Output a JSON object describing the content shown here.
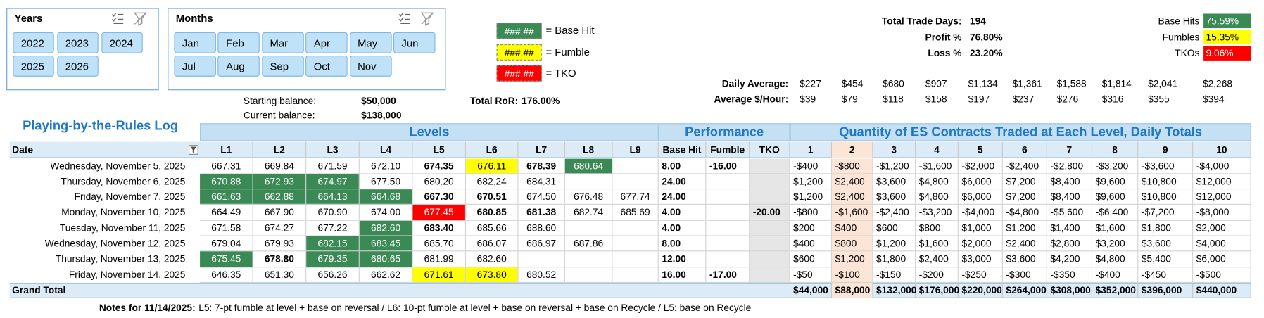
{
  "slicers": [
    {
      "title": "Years",
      "items": [
        "2022",
        "2023",
        "2024",
        "2025",
        "2026"
      ]
    },
    {
      "title": "Months",
      "items": [
        "Jan",
        "Feb",
        "Mar",
        "Apr",
        "May",
        "Jun",
        "Jul",
        "Aug",
        "Sep",
        "Oct",
        "Nov"
      ]
    }
  ],
  "legend": [
    {
      "swatch": "###.##",
      "label": "= Base Hit",
      "color": "#3b8a55",
      "text_color": "#ffffff"
    },
    {
      "swatch": "###.##",
      "label": "= Fumble",
      "color": "#ffff00",
      "text_color": "#000000"
    },
    {
      "swatch": "###.##",
      "label": "= TKO",
      "color": "#ff0000",
      "text_color": "#ffffff"
    }
  ],
  "balances": [
    {
      "label": "Starting balance:",
      "value": "$50,000"
    },
    {
      "label": "Current balance:",
      "value": "$138,000"
    }
  ],
  "ror": {
    "label": "Total RoR:",
    "value": "176.00%"
  },
  "stats": [
    {
      "label": "Total Trade Days:",
      "value": "194"
    },
    {
      "label": "Profit %",
      "value": "76.80%"
    },
    {
      "label": "Loss %",
      "value": "23.20%"
    }
  ],
  "rates": [
    {
      "label": "Base Hits",
      "value": "75.59%",
      "color": "#3b8a55",
      "text_color": "#ffffff"
    },
    {
      "label": "Fumbles",
      "value": "15.35%",
      "color": "#ffff00",
      "text_color": "#000000"
    },
    {
      "label": "TKOs",
      "value": "9.06%",
      "color": "#ff0000",
      "text_color": "#ffffff"
    }
  ],
  "averages": [
    {
      "label": "Daily Average:",
      "values": [
        "$227",
        "$454",
        "$680",
        "$907",
        "$1,134",
        "$1,361",
        "$1,588",
        "$1,814",
        "$2,041",
        "$2,268"
      ]
    },
    {
      "label": "Average $/Hour:",
      "values": [
        "$39",
        "$79",
        "$118",
        "$158",
        "$197",
        "$237",
        "$276",
        "$316",
        "$355",
        "$394"
      ]
    }
  ],
  "table": {
    "title": "Playing-by-the-Rules Log",
    "groups": [
      "Levels",
      "Performance",
      "Quantity of ES Contracts Traded at Each Level, Daily Totals"
    ],
    "columns": [
      "Date",
      "L1",
      "L2",
      "L3",
      "L4",
      "L5",
      "L6",
      "L7",
      "L8",
      "L9",
      "Base Hit",
      "Fumble",
      "TKO",
      "1",
      "2",
      "3",
      "4",
      "5",
      "6",
      "7",
      "8",
      "9",
      "10"
    ],
    "rows": [
      {
        "date": "Wednesday, November 5, 2025",
        "levels": [
          "667.31",
          "669.84",
          "671.59",
          "672.10",
          "674.35",
          "676.11",
          "678.39",
          "680.64",
          null
        ],
        "formats": [
          null,
          null,
          null,
          null,
          "bold",
          "yellow",
          "bold",
          "green",
          null
        ],
        "base_hit": "8.00",
        "fumble": "-16.00",
        "tko": null,
        "qty": [
          "-$400",
          "-$800",
          "-$1,200",
          "-$1,600",
          "-$2,000",
          "-$2,400",
          "-$2,800",
          "-$3,200",
          "-$3,600",
          "-$4,000"
        ]
      },
      {
        "date": "Thursday, November 6, 2025",
        "levels": [
          "670.88",
          "672.93",
          "674.97",
          "677.50",
          "680.20",
          "682.24",
          "684.31",
          null,
          null
        ],
        "formats": [
          "green",
          "green",
          "green",
          null,
          null,
          null,
          null,
          null,
          null
        ],
        "base_hit": "24.00",
        "fumble": null,
        "tko": null,
        "qty": [
          "$1,200",
          "$2,400",
          "$3,600",
          "$4,800",
          "$6,000",
          "$7,200",
          "$8,400",
          "$9,600",
          "$10,800",
          "$12,000"
        ]
      },
      {
        "date": "Friday, November 7, 2025",
        "levels": [
          "661.63",
          "662.88",
          "664.13",
          "664.68",
          "667.30",
          "670.51",
          "674.50",
          "676.48",
          "677.74"
        ],
        "formats": [
          "green",
          "green",
          "green",
          "green",
          "bold",
          "bold",
          null,
          null,
          null
        ],
        "base_hit": "24.00",
        "fumble": null,
        "tko": null,
        "qty": [
          "$1,200",
          "$2,400",
          "$3,600",
          "$4,800",
          "$6,000",
          "$7,200",
          "$8,400",
          "$9,600",
          "$10,800",
          "$12,000"
        ]
      },
      {
        "date": "Monday, November 10, 2025",
        "levels": [
          "664.49",
          "667.90",
          "670.90",
          "674.00",
          "677.45",
          "680.85",
          "681.38",
          "682.74",
          "685.69"
        ],
        "formats": [
          null,
          null,
          null,
          null,
          "red",
          "bold",
          "bold",
          null,
          null
        ],
        "base_hit": "4.00",
        "fumble": null,
        "tko": "-20.00",
        "qty": [
          "-$800",
          "-$1,600",
          "-$2,400",
          "-$3,200",
          "-$4,000",
          "-$4,800",
          "-$5,600",
          "-$6,400",
          "-$7,200",
          "-$8,000"
        ]
      },
      {
        "date": "Tuesday, November 11, 2025",
        "levels": [
          "671.58",
          "674.27",
          "677.22",
          "682.60",
          "683.40",
          "685.66",
          "688.60",
          null,
          null
        ],
        "formats": [
          null,
          null,
          null,
          "green",
          "bold",
          null,
          null,
          null,
          null
        ],
        "base_hit": "4.00",
        "fumble": null,
        "tko": null,
        "qty": [
          "$200",
          "$400",
          "$600",
          "$800",
          "$1,000",
          "$1,200",
          "$1,400",
          "$1,600",
          "$1,800",
          "$2,000"
        ]
      },
      {
        "date": "Wednesday, November 12, 2025",
        "levels": [
          "679.04",
          "679.93",
          "682.15",
          "683.45",
          "685.70",
          "686.07",
          "686.97",
          "687.86",
          null
        ],
        "formats": [
          null,
          null,
          "green",
          "green",
          null,
          null,
          null,
          null,
          null
        ],
        "base_hit": "8.00",
        "fumble": null,
        "tko": null,
        "qty": [
          "$400",
          "$800",
          "$1,200",
          "$1,600",
          "$2,000",
          "$2,400",
          "$2,800",
          "$3,200",
          "$3,600",
          "$4,000"
        ]
      },
      {
        "date": "Thursday, November 13, 2025",
        "levels": [
          "675.45",
          "678.80",
          "679.35",
          "680.65",
          "681.99",
          "682.60",
          null,
          null,
          null
        ],
        "formats": [
          "green",
          "bold",
          "green",
          "green",
          null,
          null,
          null,
          null,
          null
        ],
        "base_hit": "12.00",
        "fumble": null,
        "tko": null,
        "qty": [
          "$600",
          "$1,200",
          "$1,800",
          "$2,400",
          "$3,000",
          "$3,600",
          "$4,200",
          "$4,800",
          "$5,400",
          "$6,000"
        ]
      },
      {
        "date": "Friday, November 14, 2025",
        "levels": [
          "646.35",
          "651.30",
          "656.26",
          "662.62",
          "671.61",
          "673.80",
          "680.52",
          null,
          null
        ],
        "formats": [
          null,
          null,
          null,
          null,
          "yellow",
          "yellow",
          null,
          null,
          null
        ],
        "base_hit": "16.00",
        "fumble": "-17.00",
        "tko": null,
        "qty": [
          "-$50",
          "-$100",
          "-$150",
          "-$200",
          "-$250",
          "-$300",
          "-$350",
          "-$400",
          "-$450",
          "-$500"
        ]
      }
    ],
    "total": {
      "label": "Grand Total",
      "values": [
        "$44,000",
        "$88,000",
        "$132,000",
        "$176,000",
        "$220,000",
        "$264,000",
        "$308,000",
        "$352,000",
        "$396,000",
        "$440,000"
      ]
    }
  },
  "notes": {
    "label": "Notes for 11/14/2025:",
    "text": "L5: 7-pt fumble at level + base on reversal / L6: 10-pt fumble at level + base on reversal + base on Recycle / L5: base on Recycle"
  }
}
